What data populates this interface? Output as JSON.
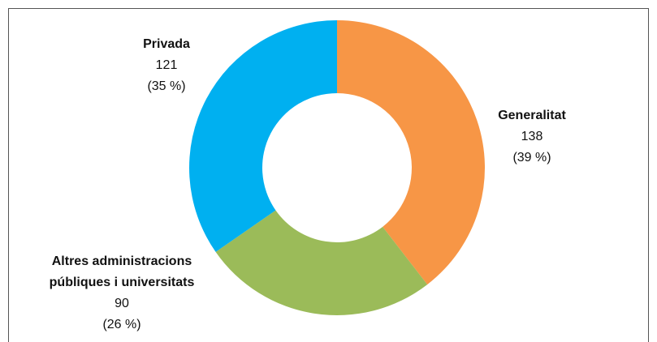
{
  "chart_data": {
    "type": "donut",
    "categories": [
      "Generalitat",
      "Altres administracions públiques i universitats",
      "Privada"
    ],
    "values": [
      138,
      90,
      121
    ],
    "percent_labels": [
      "(39 %)",
      "(26 %)",
      "(35 %)"
    ],
    "colors": [
      "#f79646",
      "#9bbb59",
      "#00b0f0"
    ]
  }
}
